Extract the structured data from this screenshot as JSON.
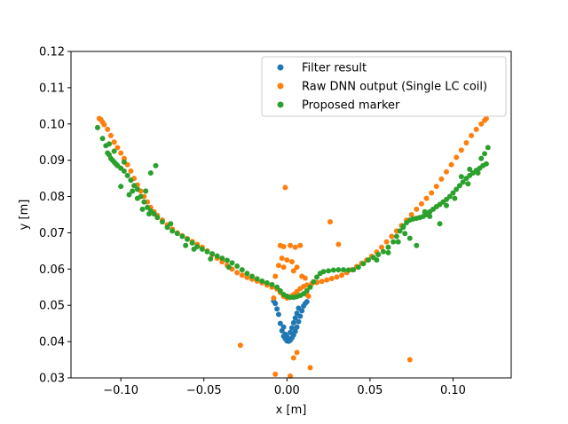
{
  "chart_data": {
    "type": "scatter",
    "title": "",
    "xlabel": "x [m]",
    "ylabel": "y [m]",
    "xlim": [
      -0.13,
      0.135
    ],
    "ylim": [
      0.03,
      0.12
    ],
    "xticks": [
      -0.1,
      -0.05,
      0.0,
      0.05,
      0.1
    ],
    "xtick_labels": [
      "−0.10",
      "−0.05",
      "0.00",
      "0.05",
      "0.10"
    ],
    "yticks": [
      0.03,
      0.04,
      0.05,
      0.06,
      0.07,
      0.08,
      0.09,
      0.1,
      0.11,
      0.12
    ],
    "ytick_labels": [
      "0.03",
      "0.04",
      "0.05",
      "0.06",
      "0.07",
      "0.08",
      "0.09",
      "0.10",
      "0.11",
      "0.12"
    ],
    "grid": false,
    "legend_position": "top-right",
    "series": [
      {
        "name": "Filter result",
        "color": "#1f77b4",
        "points": [
          [
            -0.005,
            0.0475
          ],
          [
            -0.004,
            0.045
          ],
          [
            -0.003,
            0.043
          ],
          [
            -0.002,
            0.0415
          ],
          [
            -0.001,
            0.0408
          ],
          [
            0.0,
            0.0402
          ],
          [
            0.001,
            0.0401
          ],
          [
            0.002,
            0.0404
          ],
          [
            0.003,
            0.041
          ],
          [
            0.004,
            0.0418
          ],
          [
            0.005,
            0.0428
          ],
          [
            0.006,
            0.044
          ],
          [
            0.007,
            0.0455
          ],
          [
            0.008,
            0.047
          ],
          [
            0.009,
            0.0485
          ],
          [
            0.01,
            0.0498
          ],
          [
            0.011,
            0.0505
          ],
          [
            0.012,
            0.051
          ],
          [
            -0.006,
            0.049
          ],
          [
            -0.007,
            0.0505
          ],
          [
            -0.008,
            0.0512
          ],
          [
            0.002,
            0.0425
          ],
          [
            0.003,
            0.0438
          ],
          [
            0.004,
            0.0452
          ],
          [
            -0.002,
            0.044
          ],
          [
            -0.001,
            0.042
          ],
          [
            0.005,
            0.0465
          ],
          [
            0.006,
            0.0478
          ],
          [
            0.0,
            0.0413
          ],
          [
            0.007,
            0.0492
          ]
        ]
      },
      {
        "name": "Raw DNN output (Single LC coil)",
        "color": "#ff7f0e",
        "points": [
          [
            -0.113,
            0.1015
          ],
          [
            -0.112,
            0.1012
          ],
          [
            -0.111,
            0.1005
          ],
          [
            -0.11,
            0.0998
          ],
          [
            -0.108,
            0.0985
          ],
          [
            -0.106,
            0.0968
          ],
          [
            -0.104,
            0.095
          ],
          [
            -0.102,
            0.0935
          ],
          [
            -0.1,
            0.092
          ],
          [
            -0.098,
            0.0905
          ],
          [
            -0.096,
            0.0888
          ],
          [
            -0.094,
            0.087
          ],
          [
            -0.092,
            0.085
          ],
          [
            -0.09,
            0.0832
          ],
          [
            -0.088,
            0.0815
          ],
          [
            -0.086,
            0.08
          ],
          [
            -0.084,
            0.0785
          ],
          [
            -0.082,
            0.077
          ],
          [
            -0.08,
            0.0758
          ],
          [
            -0.078,
            0.0748
          ],
          [
            -0.075,
            0.0735
          ],
          [
            -0.072,
            0.0722
          ],
          [
            -0.069,
            0.071
          ],
          [
            -0.066,
            0.07
          ],
          [
            -0.063,
            0.0692
          ],
          [
            -0.06,
            0.0684
          ],
          [
            -0.057,
            0.0676
          ],
          [
            -0.054,
            0.0668
          ],
          [
            -0.051,
            0.066
          ],
          [
            -0.048,
            0.065
          ],
          [
            -0.045,
            0.064
          ],
          [
            -0.042,
            0.063
          ],
          [
            -0.039,
            0.062
          ],
          [
            -0.036,
            0.061
          ],
          [
            -0.033,
            0.06
          ],
          [
            -0.03,
            0.059
          ],
          [
            -0.027,
            0.0583
          ],
          [
            -0.024,
            0.0577
          ],
          [
            -0.021,
            0.0572
          ],
          [
            -0.018,
            0.0567
          ],
          [
            -0.015,
            0.0562
          ],
          [
            -0.012,
            0.0556
          ],
          [
            -0.009,
            0.055
          ],
          [
            -0.006,
            0.0545
          ],
          [
            -0.004,
            0.0535
          ],
          [
            -0.002,
            0.0525
          ],
          [
            0.0,
            0.052
          ],
          [
            0.002,
            0.0524
          ],
          [
            0.004,
            0.053
          ],
          [
            0.006,
            0.0538
          ],
          [
            0.008,
            0.0546
          ],
          [
            0.01,
            0.0552
          ],
          [
            0.012,
            0.0556
          ],
          [
            0.015,
            0.056
          ],
          [
            0.018,
            0.0563
          ],
          [
            0.021,
            0.0566
          ],
          [
            0.024,
            0.057
          ],
          [
            0.027,
            0.0574
          ],
          [
            0.03,
            0.0578
          ],
          [
            0.033,
            0.0583
          ],
          [
            0.036,
            0.059
          ],
          [
            0.039,
            0.0598
          ],
          [
            0.042,
            0.0607
          ],
          [
            0.045,
            0.0616
          ],
          [
            0.048,
            0.0625
          ],
          [
            0.051,
            0.0635
          ],
          [
            0.054,
            0.0647
          ],
          [
            0.057,
            0.066
          ],
          [
            0.06,
            0.0675
          ],
          [
            0.063,
            0.069
          ],
          [
            0.066,
            0.0705
          ],
          [
            0.069,
            0.072
          ],
          [
            0.072,
            0.0735
          ],
          [
            0.075,
            0.075
          ],
          [
            0.078,
            0.0765
          ],
          [
            0.081,
            0.078
          ],
          [
            0.084,
            0.0795
          ],
          [
            0.087,
            0.081
          ],
          [
            0.09,
            0.0828
          ],
          [
            0.093,
            0.0848
          ],
          [
            0.096,
            0.0868
          ],
          [
            0.099,
            0.0888
          ],
          [
            0.102,
            0.0908
          ],
          [
            0.105,
            0.0928
          ],
          [
            0.108,
            0.0948
          ],
          [
            0.111,
            0.0968
          ],
          [
            0.114,
            0.0985
          ],
          [
            0.117,
            0.1
          ],
          [
            0.119,
            0.101
          ],
          [
            0.12,
            0.1015
          ],
          [
            -0.001,
            0.0825
          ],
          [
            0.026,
            0.073
          ],
          [
            0.031,
            0.0668
          ],
          [
            -0.028,
            0.039
          ],
          [
            -0.007,
            0.031
          ],
          [
            0.002,
            0.0305
          ],
          [
            0.074,
            0.035
          ],
          [
            0.014,
            0.0328
          ],
          [
            0.004,
            0.0355
          ],
          [
            0.006,
            0.037
          ],
          [
            -0.004,
            0.0665
          ],
          [
            -0.002,
            0.0662
          ],
          [
            0.002,
            0.0665
          ],
          [
            0.005,
            0.066
          ],
          [
            0.008,
            0.0665
          ],
          [
            -0.003,
            0.063
          ],
          [
            0.0,
            0.0625
          ],
          [
            0.003,
            0.062
          ],
          [
            -0.005,
            0.061
          ],
          [
            0.006,
            0.0605
          ],
          [
            0.009,
            0.058
          ],
          [
            0.011,
            0.0575
          ],
          [
            -0.007,
            0.058
          ],
          [
            0.004,
            0.0595
          ],
          [
            -0.002,
            0.0605
          ],
          [
            0.012,
            0.053
          ],
          [
            0.013,
            0.0525
          ],
          [
            -0.008,
            0.052
          ]
        ]
      },
      {
        "name": "Proposed marker",
        "color": "#2ca02c",
        "points": [
          [
            -0.114,
            0.099
          ],
          [
            -0.111,
            0.096
          ],
          [
            -0.109,
            0.094
          ],
          [
            -0.108,
            0.092
          ],
          [
            -0.107,
            0.0915
          ],
          [
            -0.106,
            0.0905
          ],
          [
            -0.105,
            0.09
          ],
          [
            -0.104,
            0.0895
          ],
          [
            -0.103,
            0.089
          ],
          [
            -0.102,
            0.0885
          ],
          [
            -0.1,
            0.0878
          ],
          [
            -0.098,
            0.087
          ],
          [
            -0.096,
            0.0858
          ],
          [
            -0.094,
            0.0845
          ],
          [
            -0.092,
            0.083
          ],
          [
            -0.09,
            0.082
          ],
          [
            -0.088,
            0.08
          ],
          [
            -0.086,
            0.0785
          ],
          [
            -0.084,
            0.077
          ],
          [
            -0.082,
            0.076
          ],
          [
            -0.08,
            0.0752
          ],
          [
            -0.078,
            0.0742
          ],
          [
            -0.075,
            0.073
          ],
          [
            -0.072,
            0.0715
          ],
          [
            -0.069,
            0.0705
          ],
          [
            -0.066,
            0.0698
          ],
          [
            -0.063,
            0.069
          ],
          [
            -0.06,
            0.0682
          ],
          [
            -0.057,
            0.0672
          ],
          [
            -0.054,
            0.0662
          ],
          [
            -0.051,
            0.0655
          ],
          [
            -0.048,
            0.0648
          ],
          [
            -0.045,
            0.0642
          ],
          [
            -0.042,
            0.0636
          ],
          [
            -0.039,
            0.063
          ],
          [
            -0.036,
            0.0624
          ],
          [
            -0.033,
            0.0617
          ],
          [
            -0.03,
            0.0608
          ],
          [
            -0.027,
            0.0598
          ],
          [
            -0.024,
            0.0588
          ],
          [
            -0.021,
            0.058
          ],
          [
            -0.018,
            0.0573
          ],
          [
            -0.015,
            0.0567
          ],
          [
            -0.012,
            0.0562
          ],
          [
            -0.009,
            0.0557
          ],
          [
            -0.006,
            0.055
          ],
          [
            -0.004,
            0.054
          ],
          [
            -0.002,
            0.053
          ],
          [
            0.0,
            0.0525
          ],
          [
            0.002,
            0.0522
          ],
          [
            0.004,
            0.0522
          ],
          [
            0.006,
            0.0524
          ],
          [
            0.008,
            0.0527
          ],
          [
            0.01,
            0.0532
          ],
          [
            0.012,
            0.054
          ],
          [
            0.014,
            0.055
          ],
          [
            0.016,
            0.0565
          ],
          [
            0.018,
            0.0578
          ],
          [
            0.02,
            0.0588
          ],
          [
            0.022,
            0.0593
          ],
          [
            0.025,
            0.0595
          ],
          [
            0.028,
            0.0597
          ],
          [
            0.031,
            0.0598
          ],
          [
            0.034,
            0.0598
          ],
          [
            0.037,
            0.0597
          ],
          [
            0.04,
            0.0598
          ],
          [
            0.043,
            0.0605
          ],
          [
            0.046,
            0.0615
          ],
          [
            0.049,
            0.0625
          ],
          [
            0.052,
            0.0632
          ],
          [
            0.055,
            0.064
          ],
          [
            0.058,
            0.0648
          ],
          [
            0.061,
            0.066
          ],
          [
            0.064,
            0.0675
          ],
          [
            0.066,
            0.069
          ],
          [
            0.068,
            0.0705
          ],
          [
            0.07,
            0.0718
          ],
          [
            0.072,
            0.0728
          ],
          [
            0.074,
            0.0735
          ],
          [
            0.076,
            0.0738
          ],
          [
            0.078,
            0.074
          ],
          [
            0.08,
            0.0742
          ],
          [
            0.082,
            0.0745
          ],
          [
            0.084,
            0.075
          ],
          [
            0.086,
            0.0758
          ],
          [
            0.088,
            0.0765
          ],
          [
            0.09,
            0.0772
          ],
          [
            0.092,
            0.0778
          ],
          [
            0.094,
            0.0785
          ],
          [
            0.096,
            0.0792
          ],
          [
            0.098,
            0.08
          ],
          [
            0.1,
            0.081
          ],
          [
            0.102,
            0.082
          ],
          [
            0.104,
            0.083
          ],
          [
            0.106,
            0.084
          ],
          [
            0.108,
            0.085
          ],
          [
            0.11,
            0.0858
          ],
          [
            0.112,
            0.0865
          ],
          [
            0.114,
            0.0872
          ],
          [
            0.116,
            0.0878
          ],
          [
            0.118,
            0.0885
          ],
          [
            0.12,
            0.089
          ],
          [
            0.121,
            0.0935
          ],
          [
            0.119,
            0.0918
          ],
          [
            -0.079,
            0.0885
          ],
          [
            -0.082,
            0.0865
          ],
          [
            -0.085,
            0.0815
          ],
          [
            -0.1,
            0.0828
          ],
          [
            -0.095,
            0.0805
          ],
          [
            0.074,
            0.0685
          ],
          [
            0.078,
            0.0665
          ],
          [
            0.092,
            0.0725
          ],
          [
            0.086,
            0.0745
          ],
          [
            0.07,
            0.0715
          ],
          [
            0.061,
            0.0645
          ],
          [
            0.054,
            0.0625
          ],
          [
            -0.07,
            0.0725
          ],
          [
            -0.061,
            0.0665
          ],
          [
            -0.046,
            0.0628
          ],
          [
            -0.035,
            0.0605
          ],
          [
            -0.056,
            0.0655
          ],
          [
            -0.098,
            0.0895
          ],
          [
            -0.104,
            0.0925
          ],
          [
            -0.107,
            0.0945
          ],
          [
            0.105,
            0.0855
          ],
          [
            0.11,
            0.0875
          ],
          [
            0.115,
            0.0865
          ],
          [
            0.117,
            0.0905
          ],
          [
            0.109,
            0.0835
          ],
          [
            0.101,
            0.0795
          ],
          [
            0.096,
            0.0775
          ],
          [
            0.083,
            0.0758
          ],
          [
            0.067,
            0.0675
          ],
          [
            0.071,
            0.0698
          ],
          [
            -0.09,
            0.0795
          ],
          [
            -0.087,
            0.0765
          ],
          [
            -0.093,
            0.0815
          ],
          [
            -0.083,
            0.0752
          ]
        ]
      }
    ]
  }
}
